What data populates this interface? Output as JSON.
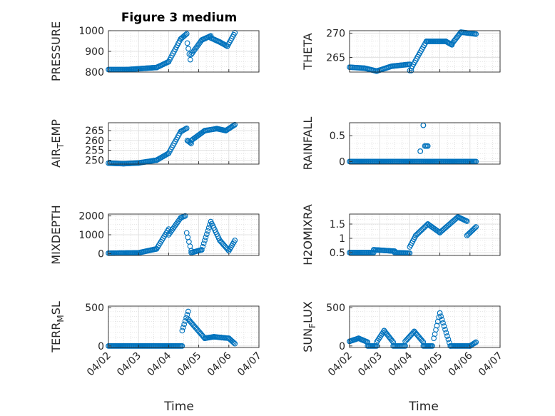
{
  "figure": {
    "title": "Figure 3 medium",
    "shared_xlabel": "Time",
    "x_tick_labels": [
      "04/02",
      "04/03",
      "04/04",
      "04/05",
      "04/06",
      "04/07"
    ],
    "marker_color": "#0072BD",
    "marker": "circle-open"
  },
  "chart_data": [
    {
      "type": "scatter",
      "ylabel": "PRESSURE",
      "xlim": [
        0,
        5
      ],
      "ylim": [
        800,
        1000
      ],
      "yticks": [
        800,
        900,
        1000
      ],
      "grid": true,
      "series": [
        {
          "segments": [
            {
              "x0": 0.0,
              "x1": 0.6,
              "y0": 812,
              "y1": 812
            },
            {
              "x0": 0.6,
              "x1": 1.6,
              "y0": 812,
              "y1": 822
            },
            {
              "x0": 1.6,
              "x1": 2.0,
              "y0": 822,
              "y1": 850
            },
            {
              "x0": 2.0,
              "x1": 2.4,
              "y0": 850,
              "y1": 960
            },
            {
              "x0": 2.4,
              "x1": 2.6,
              "y0": 960,
              "y1": 985
            },
            {
              "x0": 2.62,
              "x1": 2.72,
              "y0": 940,
              "y1": 860
            },
            {
              "x0": 2.75,
              "x1": 3.1,
              "y0": 885,
              "y1": 955
            },
            {
              "x0": 3.1,
              "x1": 3.4,
              "y0": 955,
              "y1": 975
            },
            {
              "x0": 3.4,
              "x1": 3.7,
              "y0": 965,
              "y1": 945
            },
            {
              "x0": 3.7,
              "x1": 3.95,
              "y0": 945,
              "y1": 925
            },
            {
              "x0": 3.95,
              "x1": 4.2,
              "y0": 925,
              "y1": 990
            }
          ]
        }
      ]
    },
    {
      "type": "scatter",
      "ylabel": "THETA",
      "xlim": [
        0,
        5
      ],
      "ylim": [
        262,
        270.5
      ],
      "yticks": [
        265,
        270
      ],
      "grid": true,
      "series": [
        {
          "segments": [
            {
              "x0": 0.0,
              "x1": 0.5,
              "y0": 263,
              "y1": 262.8
            },
            {
              "x0": 0.5,
              "x1": 0.9,
              "y0": 262.8,
              "y1": 262.2
            },
            {
              "x0": 0.9,
              "x1": 1.4,
              "y0": 262.2,
              "y1": 263.2
            },
            {
              "x0": 1.4,
              "x1": 2.0,
              "y0": 263.2,
              "y1": 263.6
            },
            {
              "x0": 2.0,
              "x1": 2.05,
              "y0": 262.3,
              "y1": 262.3
            },
            {
              "x0": 2.05,
              "x1": 2.55,
              "y0": 262.8,
              "y1": 268.3
            },
            {
              "x0": 2.55,
              "x1": 3.2,
              "y0": 268.3,
              "y1": 268.3
            },
            {
              "x0": 3.2,
              "x1": 3.4,
              "y0": 268.3,
              "y1": 267.6
            },
            {
              "x0": 3.4,
              "x1": 3.7,
              "y0": 267.8,
              "y1": 270.2
            },
            {
              "x0": 3.7,
              "x1": 4.2,
              "y0": 270.2,
              "y1": 269.8
            }
          ]
        }
      ]
    },
    {
      "type": "scatter",
      "ylabel": "AIR_TEMP",
      "xlim": [
        0,
        5
      ],
      "ylim": [
        248,
        269
      ],
      "yticks": [
        250,
        255,
        260,
        265
      ],
      "grid": true,
      "series": [
        {
          "segments": [
            {
              "x0": 0.0,
              "x1": 0.5,
              "y0": 248.5,
              "y1": 248.2
            },
            {
              "x0": 0.5,
              "x1": 1.0,
              "y0": 248.2,
              "y1": 248.6
            },
            {
              "x0": 1.0,
              "x1": 1.6,
              "y0": 248.6,
              "y1": 250.0
            },
            {
              "x0": 1.6,
              "x1": 2.0,
              "y0": 250.0,
              "y1": 253.5
            },
            {
              "x0": 2.0,
              "x1": 2.4,
              "y0": 253.5,
              "y1": 264.5
            },
            {
              "x0": 2.4,
              "x1": 2.6,
              "y0": 264.5,
              "y1": 266.2
            },
            {
              "x0": 2.62,
              "x1": 2.75,
              "y0": 260.0,
              "y1": 258.5
            },
            {
              "x0": 2.75,
              "x1": 3.2,
              "y0": 260.0,
              "y1": 265.0
            },
            {
              "x0": 3.2,
              "x1": 3.6,
              "y0": 265.0,
              "y1": 266.0
            },
            {
              "x0": 3.6,
              "x1": 3.9,
              "y0": 266.0,
              "y1": 265.0
            },
            {
              "x0": 3.9,
              "x1": 4.2,
              "y0": 265.0,
              "y1": 268.0
            }
          ]
        }
      ]
    },
    {
      "type": "scatter",
      "ylabel": "RAINFALL",
      "xlim": [
        0,
        5
      ],
      "ylim": [
        -0.05,
        0.75
      ],
      "yticks": [
        0,
        0.5
      ],
      "grid": true,
      "series": [
        {
          "segments": [
            {
              "x0": 0.0,
              "x1": 4.2,
              "y0": 0,
              "y1": 0
            },
            {
              "x0": 2.35,
              "x1": 2.35,
              "y0": 0.2,
              "y1": 0.2
            },
            {
              "x0": 2.45,
              "x1": 2.45,
              "y0": 0.7,
              "y1": 0.7
            },
            {
              "x0": 2.5,
              "x1": 2.6,
              "y0": 0.3,
              "y1": 0.3
            }
          ]
        }
      ]
    },
    {
      "type": "scatter",
      "ylabel": "MIXDEPTH",
      "xlim": [
        0,
        5
      ],
      "ylim": [
        -100,
        2100
      ],
      "yticks": [
        0,
        1000,
        2000
      ],
      "grid": true,
      "series": [
        {
          "segments": [
            {
              "x0": 0.0,
              "x1": 1.0,
              "y0": 20,
              "y1": 40
            },
            {
              "x0": 1.0,
              "x1": 1.6,
              "y0": 40,
              "y1": 250
            },
            {
              "x0": 1.6,
              "x1": 2.0,
              "y0": 250,
              "y1": 1300
            },
            {
              "x0": 2.0,
              "x1": 2.4,
              "y0": 1000,
              "y1": 1900
            },
            {
              "x0": 2.4,
              "x1": 2.55,
              "y0": 1900,
              "y1": 2000
            },
            {
              "x0": 2.6,
              "x1": 2.75,
              "y0": 1100,
              "y1": 150
            },
            {
              "x0": 2.75,
              "x1": 3.1,
              "y0": 50,
              "y1": 200
            },
            {
              "x0": 3.1,
              "x1": 3.4,
              "y0": 200,
              "y1": 1700
            },
            {
              "x0": 3.4,
              "x1": 3.7,
              "y0": 1700,
              "y1": 700
            },
            {
              "x0": 3.7,
              "x1": 4.0,
              "y0": 700,
              "y1": 150
            },
            {
              "x0": 4.0,
              "x1": 4.2,
              "y0": 150,
              "y1": 700
            }
          ]
        }
      ]
    },
    {
      "type": "scatter",
      "ylabel": "H2OMIXRA",
      "xlim": [
        0,
        5
      ],
      "ylim": [
        0.4,
        1.85
      ],
      "yticks": [
        0.5,
        1,
        1.5
      ],
      "grid": true,
      "series": [
        {
          "segments": [
            {
              "x0": 0.0,
              "x1": 0.8,
              "y0": 0.5,
              "y1": 0.5
            },
            {
              "x0": 0.8,
              "x1": 1.5,
              "y0": 0.6,
              "y1": 0.55
            },
            {
              "x0": 1.5,
              "x1": 2.0,
              "y0": 0.5,
              "y1": 0.48
            },
            {
              "x0": 2.0,
              "x1": 2.2,
              "y0": 0.7,
              "y1": 1.1
            },
            {
              "x0": 2.2,
              "x1": 2.6,
              "y0": 1.1,
              "y1": 1.5
            },
            {
              "x0": 2.6,
              "x1": 3.0,
              "y0": 1.5,
              "y1": 1.2
            },
            {
              "x0": 3.0,
              "x1": 3.6,
              "y0": 1.2,
              "y1": 1.75
            },
            {
              "x0": 3.6,
              "x1": 3.9,
              "y0": 1.75,
              "y1": 1.6
            },
            {
              "x0": 3.9,
              "x1": 4.2,
              "y0": 1.1,
              "y1": 1.4
            }
          ]
        }
      ]
    },
    {
      "type": "scatter",
      "ylabel": "TERR_MSL",
      "xlim": [
        0,
        5
      ],
      "ylim": [
        -20,
        520
      ],
      "yticks": [
        0,
        500
      ],
      "grid": true,
      "series": [
        {
          "segments": [
            {
              "x0": 0.0,
              "x1": 2.45,
              "y0": 0,
              "y1": 0
            },
            {
              "x0": 2.45,
              "x1": 2.65,
              "y0": 200,
              "y1": 450
            },
            {
              "x0": 2.65,
              "x1": 3.2,
              "y0": 350,
              "y1": 100
            },
            {
              "x0": 3.2,
              "x1": 3.5,
              "y0": 100,
              "y1": 120
            },
            {
              "x0": 3.5,
              "x1": 4.0,
              "y0": 120,
              "y1": 100
            },
            {
              "x0": 4.0,
              "x1": 4.2,
              "y0": 100,
              "y1": 30
            }
          ]
        }
      ]
    },
    {
      "type": "scatter",
      "ylabel": "SUN_FLUX",
      "xlim": [
        0,
        5
      ],
      "ylim": [
        -20,
        520
      ],
      "yticks": [
        0,
        500
      ],
      "grid": true,
      "series": [
        {
          "segments": [
            {
              "x0": 0.0,
              "x1": 0.3,
              "y0": 60,
              "y1": 100
            },
            {
              "x0": 0.3,
              "x1": 0.6,
              "y0": 100,
              "y1": 50
            },
            {
              "x0": 0.6,
              "x1": 0.9,
              "y0": 0,
              "y1": 0
            },
            {
              "x0": 0.9,
              "x1": 1.15,
              "y0": 50,
              "y1": 200
            },
            {
              "x0": 1.15,
              "x1": 1.45,
              "y0": 200,
              "y1": 50
            },
            {
              "x0": 1.45,
              "x1": 1.85,
              "y0": 0,
              "y1": 0
            },
            {
              "x0": 1.85,
              "x1": 2.15,
              "y0": 60,
              "y1": 190
            },
            {
              "x0": 2.15,
              "x1": 2.45,
              "y0": 190,
              "y1": 50
            },
            {
              "x0": 2.45,
              "x1": 2.75,
              "y0": 0,
              "y1": 0
            },
            {
              "x0": 2.8,
              "x1": 3.0,
              "y0": 100,
              "y1": 430
            },
            {
              "x0": 3.0,
              "x1": 3.35,
              "y0": 430,
              "y1": 0
            },
            {
              "x0": 3.35,
              "x1": 4.0,
              "y0": 0,
              "y1": 0
            },
            {
              "x0": 4.0,
              "x1": 4.2,
              "y0": 0,
              "y1": 50
            }
          ]
        }
      ]
    }
  ]
}
